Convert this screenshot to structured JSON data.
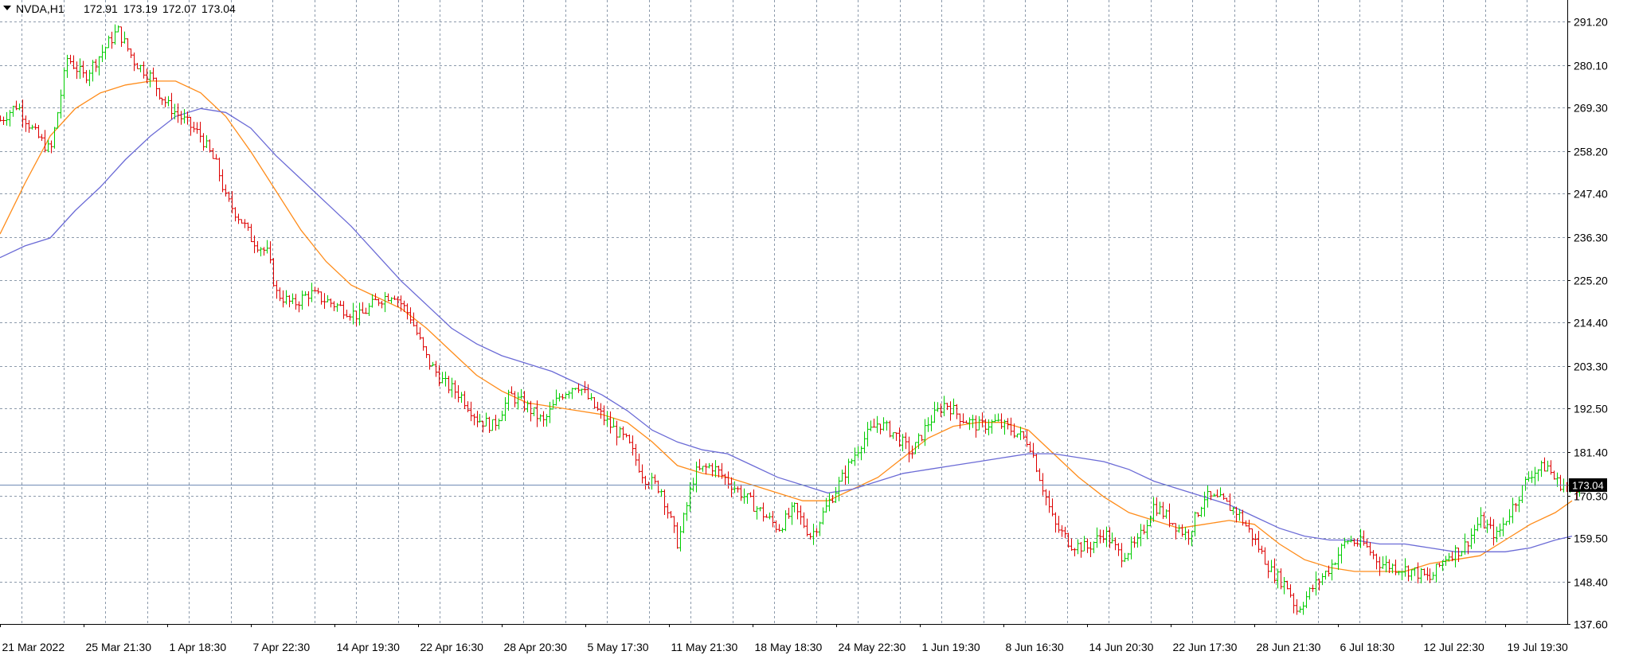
{
  "header": {
    "symbol": "NVDA,H1",
    "open": "172.91",
    "high": "173.19",
    "low": "172.07",
    "close": "173.04"
  },
  "colors": {
    "background": "#ffffff",
    "grid": "#8c9aab",
    "bull": "#00cc00",
    "bear": "#dd0000",
    "ma_fast": "#ff8c1a",
    "ma_slow": "#6b6bd6",
    "current_price_line": "#6f8bb5",
    "price_tag_bg": "#000000"
  },
  "chart_data": {
    "type": "ohlc-bar",
    "symbol": "NVDA",
    "timeframe": "H1",
    "current_price": 173.04,
    "current_price_label": "173.04",
    "ylim": [
      137.6,
      296.0
    ],
    "y_ticks": [
      291.2,
      280.1,
      269.3,
      258.2,
      247.4,
      236.3,
      225.2,
      214.4,
      203.3,
      192.5,
      181.4,
      170.3,
      159.5,
      148.4,
      137.6
    ],
    "y_tick_labels": [
      "291.20",
      "280.10",
      "269.30",
      "258.20",
      "247.40",
      "236.30",
      "225.20",
      "214.40",
      "203.30",
      "192.50",
      "181.40",
      "170.30",
      "159.50",
      "148.40",
      "137.60"
    ],
    "x_ticks": [
      0,
      10,
      20,
      30,
      40,
      50,
      60,
      70,
      80,
      90,
      100,
      110,
      120,
      130,
      140,
      150,
      160,
      170,
      180,
      190
    ],
    "x_tick_labels": [
      "21 Mar 2022",
      "25 Mar 21:30",
      "1 Apr 18:30",
      "7 Apr 22:30",
      "14 Apr 19:30",
      "22 Apr 16:30",
      "28 Apr 20:30",
      "5 May 17:30",
      "11 May 21:30",
      "18 May 18:30",
      "24 May 22:30",
      "1 Jun 19:30",
      "8 Jun 16:30",
      "14 Jun 20:30",
      "22 Jun 17:30",
      "28 Jun 21:30",
      "6 Jul 18:30",
      "12 Jul 22:30",
      "19 Jul 19:30",
      ""
    ],
    "x_range": [
      0,
      190.5
    ],
    "price_path": [
      [
        0,
        266
      ],
      [
        2,
        270
      ],
      [
        4,
        263
      ],
      [
        6,
        258
      ],
      [
        7,
        270
      ],
      [
        8,
        282
      ],
      [
        10,
        277
      ],
      [
        12,
        283
      ],
      [
        14,
        289
      ],
      [
        16,
        281
      ],
      [
        18,
        277
      ],
      [
        19,
        273
      ],
      [
        20,
        270
      ],
      [
        22,
        266
      ],
      [
        24,
        262
      ],
      [
        26,
        254
      ],
      [
        27,
        246
      ],
      [
        29,
        240
      ],
      [
        30,
        236
      ],
      [
        32,
        232
      ],
      [
        33,
        222
      ],
      [
        35,
        219
      ],
      [
        37,
        222
      ],
      [
        39,
        220
      ],
      [
        41,
        218
      ],
      [
        43,
        216
      ],
      [
        45,
        220
      ],
      [
        47,
        222
      ],
      [
        49,
        216
      ],
      [
        51,
        205
      ],
      [
        53,
        199
      ],
      [
        55,
        196
      ],
      [
        57,
        190
      ],
      [
        59,
        188
      ],
      [
        61,
        196
      ],
      [
        63,
        193
      ],
      [
        65,
        189
      ],
      [
        67,
        196
      ],
      [
        69,
        199
      ],
      [
        71,
        193
      ],
      [
        73,
        188
      ],
      [
        75,
        184
      ],
      [
        77,
        175
      ],
      [
        79,
        172
      ],
      [
        81,
        158
      ],
      [
        83,
        176
      ],
      [
        85,
        178
      ],
      [
        87,
        174
      ],
      [
        89,
        170
      ],
      [
        91,
        166
      ],
      [
        93,
        162
      ],
      [
        95,
        167
      ],
      [
        97,
        160
      ],
      [
        99,
        168
      ],
      [
        101,
        176
      ],
      [
        103,
        184
      ],
      [
        105,
        189
      ],
      [
        107,
        186
      ],
      [
        109,
        181
      ],
      [
        111,
        189
      ],
      [
        113,
        194
      ],
      [
        115,
        190
      ],
      [
        117,
        188
      ],
      [
        119,
        189
      ],
      [
        121,
        187
      ],
      [
        123,
        184
      ],
      [
        124,
        177
      ],
      [
        125,
        170
      ],
      [
        126,
        163
      ],
      [
        128,
        158
      ],
      [
        130,
        157
      ],
      [
        132,
        161
      ],
      [
        134,
        155
      ],
      [
        136,
        158
      ],
      [
        138,
        168
      ],
      [
        140,
        164
      ],
      [
        142,
        160
      ],
      [
        144,
        170
      ],
      [
        146,
        169
      ],
      [
        148,
        166
      ],
      [
        150,
        159
      ],
      [
        152,
        151
      ],
      [
        154,
        147
      ],
      [
        155,
        141
      ],
      [
        157,
        147
      ],
      [
        159,
        152
      ],
      [
        161,
        159
      ],
      [
        163,
        158
      ],
      [
        165,
        153
      ],
      [
        167,
        152
      ],
      [
        169,
        151
      ],
      [
        171,
        149
      ],
      [
        173,
        155
      ],
      [
        175,
        157
      ],
      [
        177,
        164
      ],
      [
        179,
        160
      ],
      [
        181,
        168
      ],
      [
        183,
        176
      ],
      [
        185,
        178
      ],
      [
        186,
        174
      ],
      [
        188,
        172
      ],
      [
        189,
        173.04
      ]
    ],
    "series": [
      {
        "type": "line",
        "color_key": "ma_fast",
        "points": [
          [
            0,
            237
          ],
          [
            3,
            250
          ],
          [
            6,
            262
          ],
          [
            9,
            269
          ],
          [
            12,
            273
          ],
          [
            15,
            275
          ],
          [
            18,
            276
          ],
          [
            21,
            276
          ],
          [
            24,
            273
          ],
          [
            27,
            267
          ],
          [
            30,
            258
          ],
          [
            33,
            248
          ],
          [
            36,
            238
          ],
          [
            39,
            230
          ],
          [
            42,
            224
          ],
          [
            45,
            221
          ],
          [
            48,
            218
          ],
          [
            51,
            213
          ],
          [
            54,
            207
          ],
          [
            57,
            201
          ],
          [
            60,
            197
          ],
          [
            63,
            194
          ],
          [
            66,
            193
          ],
          [
            69,
            192
          ],
          [
            72,
            191
          ],
          [
            75,
            189
          ],
          [
            78,
            184
          ],
          [
            81,
            178
          ],
          [
            84,
            176
          ],
          [
            87,
            175
          ],
          [
            90,
            173
          ],
          [
            93,
            171
          ],
          [
            96,
            169
          ],
          [
            99,
            169
          ],
          [
            102,
            172
          ],
          [
            105,
            175
          ],
          [
            108,
            180
          ],
          [
            111,
            185
          ],
          [
            114,
            188
          ],
          [
            117,
            189
          ],
          [
            120,
            189
          ],
          [
            123,
            187
          ],
          [
            126,
            181
          ],
          [
            129,
            175
          ],
          [
            132,
            170
          ],
          [
            135,
            166
          ],
          [
            138,
            164
          ],
          [
            141,
            162
          ],
          [
            144,
            163
          ],
          [
            147,
            164
          ],
          [
            150,
            163
          ],
          [
            153,
            158
          ],
          [
            156,
            154
          ],
          [
            159,
            152
          ],
          [
            162,
            151
          ],
          [
            165,
            151
          ],
          [
            168,
            151
          ],
          [
            171,
            153
          ],
          [
            174,
            154
          ],
          [
            177,
            155
          ],
          [
            180,
            159
          ],
          [
            183,
            163
          ],
          [
            186,
            166
          ],
          [
            188,
            169
          ]
        ]
      },
      {
        "type": "line",
        "color_key": "ma_slow",
        "points": [
          [
            0,
            231
          ],
          [
            3,
            234
          ],
          [
            6,
            236
          ],
          [
            9,
            243
          ],
          [
            12,
            249
          ],
          [
            15,
            256
          ],
          [
            18,
            262
          ],
          [
            21,
            267
          ],
          [
            24,
            269
          ],
          [
            27,
            268
          ],
          [
            30,
            264
          ],
          [
            33,
            257
          ],
          [
            36,
            251
          ],
          [
            39,
            245
          ],
          [
            42,
            239
          ],
          [
            45,
            232
          ],
          [
            48,
            225
          ],
          [
            51,
            219
          ],
          [
            54,
            213
          ],
          [
            57,
            209
          ],
          [
            60,
            206
          ],
          [
            63,
            204
          ],
          [
            66,
            202
          ],
          [
            69,
            199
          ],
          [
            72,
            196
          ],
          [
            75,
            192
          ],
          [
            78,
            187
          ],
          [
            81,
            184
          ],
          [
            84,
            182
          ],
          [
            87,
            181
          ],
          [
            90,
            178
          ],
          [
            93,
            175
          ],
          [
            96,
            173
          ],
          [
            99,
            171
          ],
          [
            102,
            172
          ],
          [
            105,
            174
          ],
          [
            108,
            176
          ],
          [
            111,
            177
          ],
          [
            114,
            178
          ],
          [
            117,
            179
          ],
          [
            120,
            180
          ],
          [
            123,
            181
          ],
          [
            126,
            181
          ],
          [
            129,
            180
          ],
          [
            132,
            179
          ],
          [
            135,
            177
          ],
          [
            138,
            174
          ],
          [
            141,
            172
          ],
          [
            144,
            170
          ],
          [
            147,
            168
          ],
          [
            150,
            165
          ],
          [
            153,
            162
          ],
          [
            156,
            160
          ],
          [
            159,
            159
          ],
          [
            162,
            159
          ],
          [
            165,
            158
          ],
          [
            168,
            158
          ],
          [
            171,
            157
          ],
          [
            174,
            156
          ],
          [
            177,
            156
          ],
          [
            180,
            156
          ],
          [
            183,
            157
          ],
          [
            186,
            159
          ],
          [
            188,
            160
          ]
        ]
      }
    ]
  }
}
